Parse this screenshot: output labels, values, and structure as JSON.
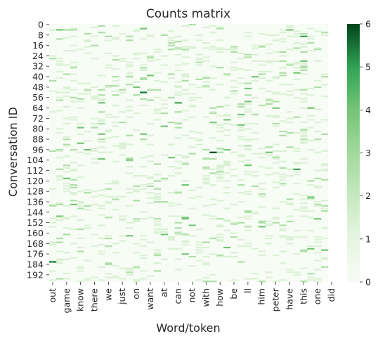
{
  "chart_data": {
    "type": "heatmap",
    "title": "Counts matrix",
    "xlabel": "Word/token",
    "ylabel": "Conversation ID",
    "n_rows": 198,
    "n_cols": 40,
    "value_range": [
      0,
      6
    ],
    "colormap": "Greens",
    "colorbar_ticks": [
      "0",
      "1",
      "2",
      "3",
      "4",
      "5",
      "6"
    ],
    "y_tick_labels": [
      "0",
      "8",
      "16",
      "24",
      "32",
      "40",
      "48",
      "56",
      "64",
      "72",
      "80",
      "88",
      "96",
      "104",
      "112",
      "120",
      "128",
      "136",
      "144",
      "152",
      "160",
      "168",
      "176",
      "184",
      "192"
    ],
    "x_tick_labels": [
      "out",
      "game",
      "know",
      "there",
      "we",
      "just",
      "on",
      "want",
      "at",
      "can",
      "not",
      "with",
      "how",
      "be",
      "ll",
      "him",
      "peter",
      "have",
      "this",
      "one",
      "did"
    ],
    "notable_cells": [
      {
        "row": 98,
        "col": 23,
        "value": 6
      },
      {
        "row": 182,
        "col": 0,
        "value": 5
      },
      {
        "row": 52,
        "col": 13,
        "value": 5
      },
      {
        "row": 60,
        "col": 18,
        "value": 4
      },
      {
        "row": 111,
        "col": 35,
        "value": 4
      },
      {
        "row": 9,
        "col": 36,
        "value": 4
      }
    ],
    "values_note": ""
  }
}
